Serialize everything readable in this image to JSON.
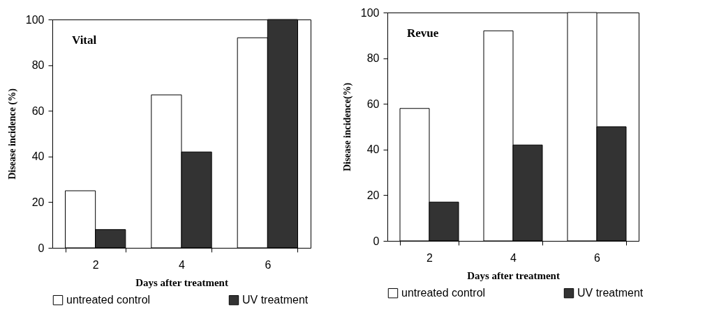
{
  "chart_data": [
    {
      "type": "bar",
      "annotations": [
        "Vital"
      ],
      "xlabel": "Days after treatment",
      "ylabel": "Disease incidence (%)",
      "categories": [
        "2",
        "4",
        "6"
      ],
      "series": [
        {
          "name": "untreated control",
          "color": "#ffffff",
          "values": [
            25,
            67,
            92
          ]
        },
        {
          "name": "UV treatment",
          "color": "#333333",
          "values": [
            8,
            42,
            100
          ]
        }
      ],
      "ylim": [
        0,
        100
      ],
      "yticks": [
        0,
        20,
        40,
        60,
        80,
        100
      ],
      "grid": false,
      "legend": "bottom"
    },
    {
      "type": "bar",
      "annotations": [
        "Revue"
      ],
      "xlabel": "Days after treatment",
      "ylabel": "Disease incidence(%)",
      "categories": [
        "2",
        "4",
        "6"
      ],
      "series": [
        {
          "name": "untreated control",
          "color": "#ffffff",
          "values": [
            58,
            92,
            100
          ]
        },
        {
          "name": "UV treatment",
          "color": "#333333",
          "values": [
            17,
            42,
            50
          ]
        }
      ],
      "ylim": [
        0,
        100
      ],
      "yticks": [
        0,
        20,
        40,
        60,
        80,
        100
      ],
      "grid": false,
      "legend": "bottom"
    }
  ]
}
